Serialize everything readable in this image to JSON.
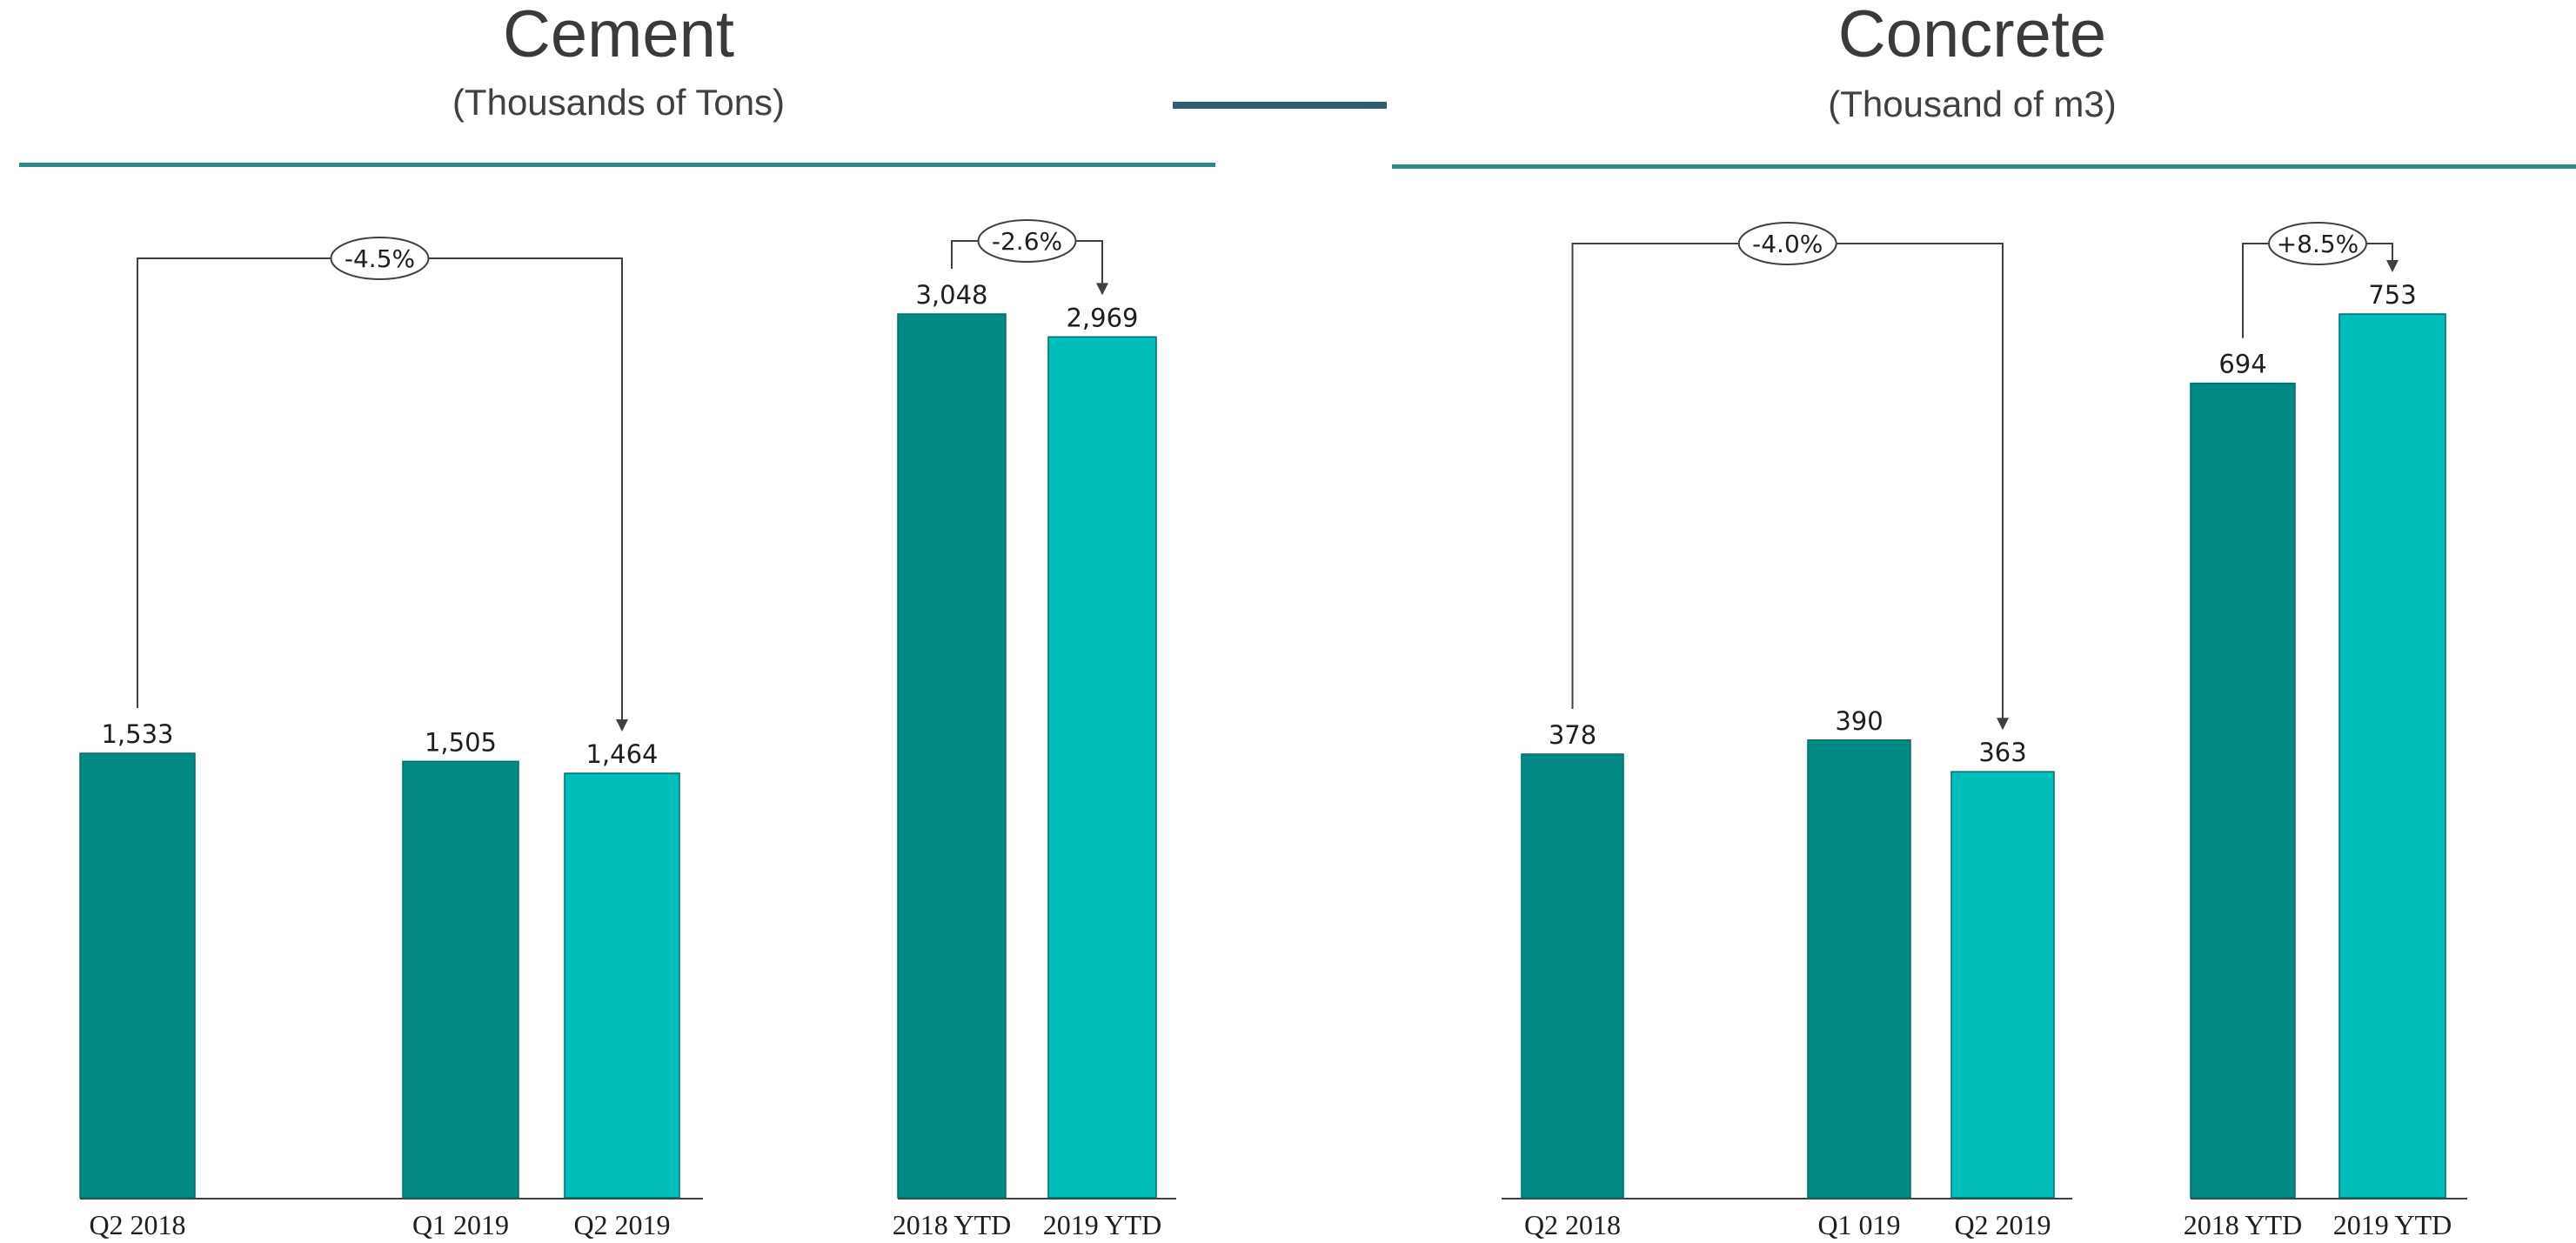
{
  "panels": [
    {
      "title": "Cement",
      "subtitle": "(Thousands of Tons)"
    },
    {
      "title": "Concrete",
      "subtitle": "(Thousand of m3)"
    }
  ],
  "colors": {
    "dark_teal": "#008985",
    "light_teal": "#00BFBB",
    "rule": "#2E8C86",
    "title_bar": "#2F5F6E",
    "text": "#1E1E1E"
  },
  "chart_data": [
    {
      "type": "bar",
      "title": "Cement",
      "subtitle": "(Thousands of Tons)",
      "groups": [
        {
          "categories": [
            "Q2 2018",
            "Q1 2019",
            "Q2 2019"
          ],
          "values": [
            1533,
            1505,
            1464
          ],
          "labels": [
            "1,533",
            "1,505",
            "1,464"
          ],
          "bar_colors": [
            "dark_teal",
            "dark_teal",
            "light_teal"
          ],
          "change": {
            "label": "-4.5%",
            "from": "Q2 2018",
            "to": "Q2 2019"
          }
        },
        {
          "categories": [
            "2018 YTD",
            "2019 YTD"
          ],
          "values": [
            3048,
            2969
          ],
          "labels": [
            "3,048",
            "2,969"
          ],
          "bar_colors": [
            "dark_teal",
            "light_teal"
          ],
          "change": {
            "label": "-2.6%",
            "from": "2018 YTD",
            "to": "2019 YTD"
          }
        }
      ],
      "xlabel": "",
      "ylabel": "",
      "grid": false
    },
    {
      "type": "bar",
      "title": "Concrete",
      "subtitle": "(Thousand of m3)",
      "groups": [
        {
          "categories": [
            "Q2 2018",
            "Q1 019",
            "Q2 2019"
          ],
          "values": [
            378,
            390,
            363
          ],
          "labels": [
            "378",
            "390",
            "363"
          ],
          "bar_colors": [
            "dark_teal",
            "dark_teal",
            "light_teal"
          ],
          "change": {
            "label": "-4.0%",
            "from": "Q2 2018",
            "to": "Q2 2019"
          }
        },
        {
          "categories": [
            "2018 YTD",
            "2019 YTD"
          ],
          "values": [
            694,
            753
          ],
          "labels": [
            "694",
            "753"
          ],
          "bar_colors": [
            "dark_teal",
            "light_teal"
          ],
          "change": {
            "label": "+8.5%",
            "from": "2018 YTD",
            "to": "2019 YTD"
          }
        }
      ],
      "xlabel": "",
      "ylabel": "",
      "grid": false
    }
  ]
}
